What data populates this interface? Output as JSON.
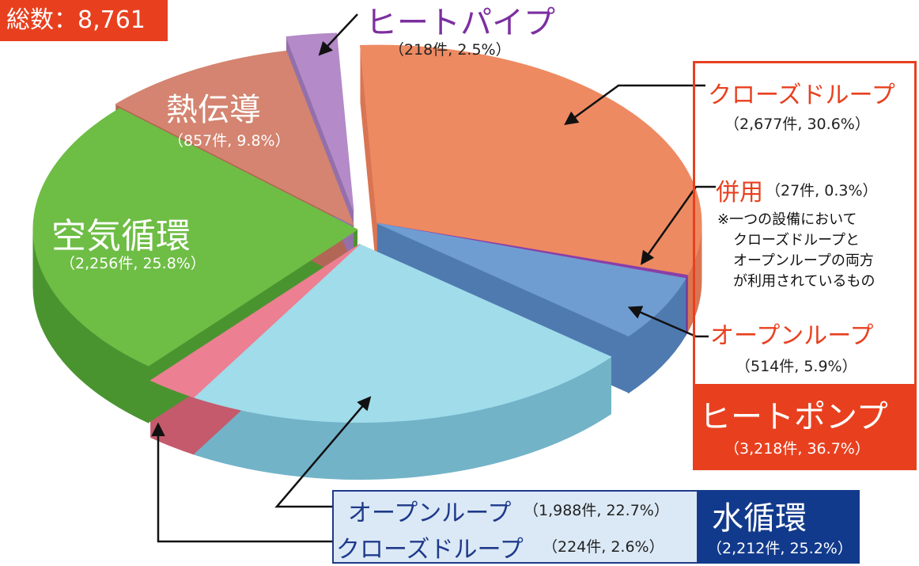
{
  "total_label": "総数：8,761件",
  "chart_data": {
    "type": "pie",
    "total": 8761,
    "slices": [
      {
        "group": "ヒートポンプ",
        "name": "クローズドループ",
        "count": 2677,
        "percent": 30.6,
        "color": "#ee8a62",
        "side": "#d97553"
      },
      {
        "group": "ヒートポンプ",
        "name": "併用",
        "count": 27,
        "percent": 0.3,
        "color": "#8a3fa8",
        "side": "#7a3495"
      },
      {
        "group": "ヒートポンプ",
        "name": "オープンループ",
        "count": 514,
        "percent": 5.9,
        "color": "#6f9dd1",
        "side": "#4f7ab0"
      },
      {
        "group": "水循環",
        "name": "オープンループ",
        "count": 1988,
        "percent": 22.7,
        "color": "#a0dcea",
        "side": "#72b3c8"
      },
      {
        "group": "水循環",
        "name": "クローズドループ",
        "count": 224,
        "percent": 2.6,
        "color": "#ec7f91",
        "side": "#c45a6c"
      },
      {
        "group": "空気循環",
        "name": "空気循環",
        "count": 2256,
        "percent": 25.8,
        "color": "#6ebd45",
        "side": "#4a9430"
      },
      {
        "group": "熱伝導",
        "name": "熱伝導",
        "count": 857,
        "percent": 9.8,
        "color": "#d48470",
        "side": "#b26655"
      },
      {
        "group": "ヒートパイプ",
        "name": "ヒートパイプ",
        "count": 218,
        "percent": 2.5,
        "color": "#b48ac8",
        "side": "#9470ab"
      }
    ]
  },
  "labels": {
    "heat_pipe": {
      "title": "ヒートパイプ",
      "detail": "（218件, 2.5%）"
    },
    "conduction": {
      "title": "熱伝導",
      "detail": "（857件, 9.8%）"
    },
    "air": {
      "title": "空気循環",
      "detail": "（2,256件, 25.8%）"
    },
    "hp_closed": {
      "title": "クローズドループ",
      "detail": "（2,677件, 30.6%）"
    },
    "hp_combined": {
      "title": "併用",
      "detail": "（27件, 0.3%）"
    },
    "note": [
      "※一つの設備において",
      "クローズドループと",
      "オープンループの両方",
      "が利用されているもの"
    ],
    "hp_open": {
      "title": "オープンループ",
      "detail": "（514件, 5.9%）"
    },
    "heat_pump": {
      "title": "ヒートポンプ",
      "detail": "（3,218件, 36.7%）"
    },
    "water_open": {
      "title": "オープンループ",
      "detail": "（1,988件, 22.7%）"
    },
    "water_closed": {
      "title": "クローズドループ",
      "detail": "（224件, 2.6%）"
    },
    "water": {
      "title": "水循環",
      "detail": "（2,212件, 25.2%）"
    }
  },
  "colors": {
    "accent_red": "#e8401f",
    "heat_pipe_purple": "#7b2fa0",
    "water_navy": "#123a8c"
  }
}
